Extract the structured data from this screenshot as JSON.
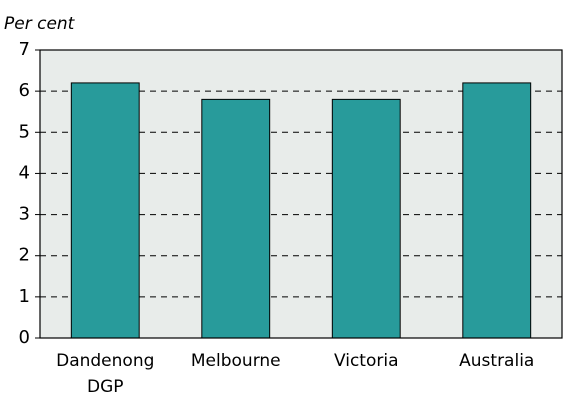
{
  "chart_data": {
    "type": "bar",
    "y_label": "Per cent",
    "categories": [
      "Dandenong DGP",
      "Melbourne",
      "Victoria",
      "Australia"
    ],
    "values": [
      6.2,
      5.8,
      5.8,
      6.2
    ],
    "color": "#289b9b",
    "ylim": [
      0,
      7
    ],
    "yticks": [
      0,
      1,
      2,
      3,
      4,
      5,
      6,
      7
    ],
    "grid": true
  }
}
